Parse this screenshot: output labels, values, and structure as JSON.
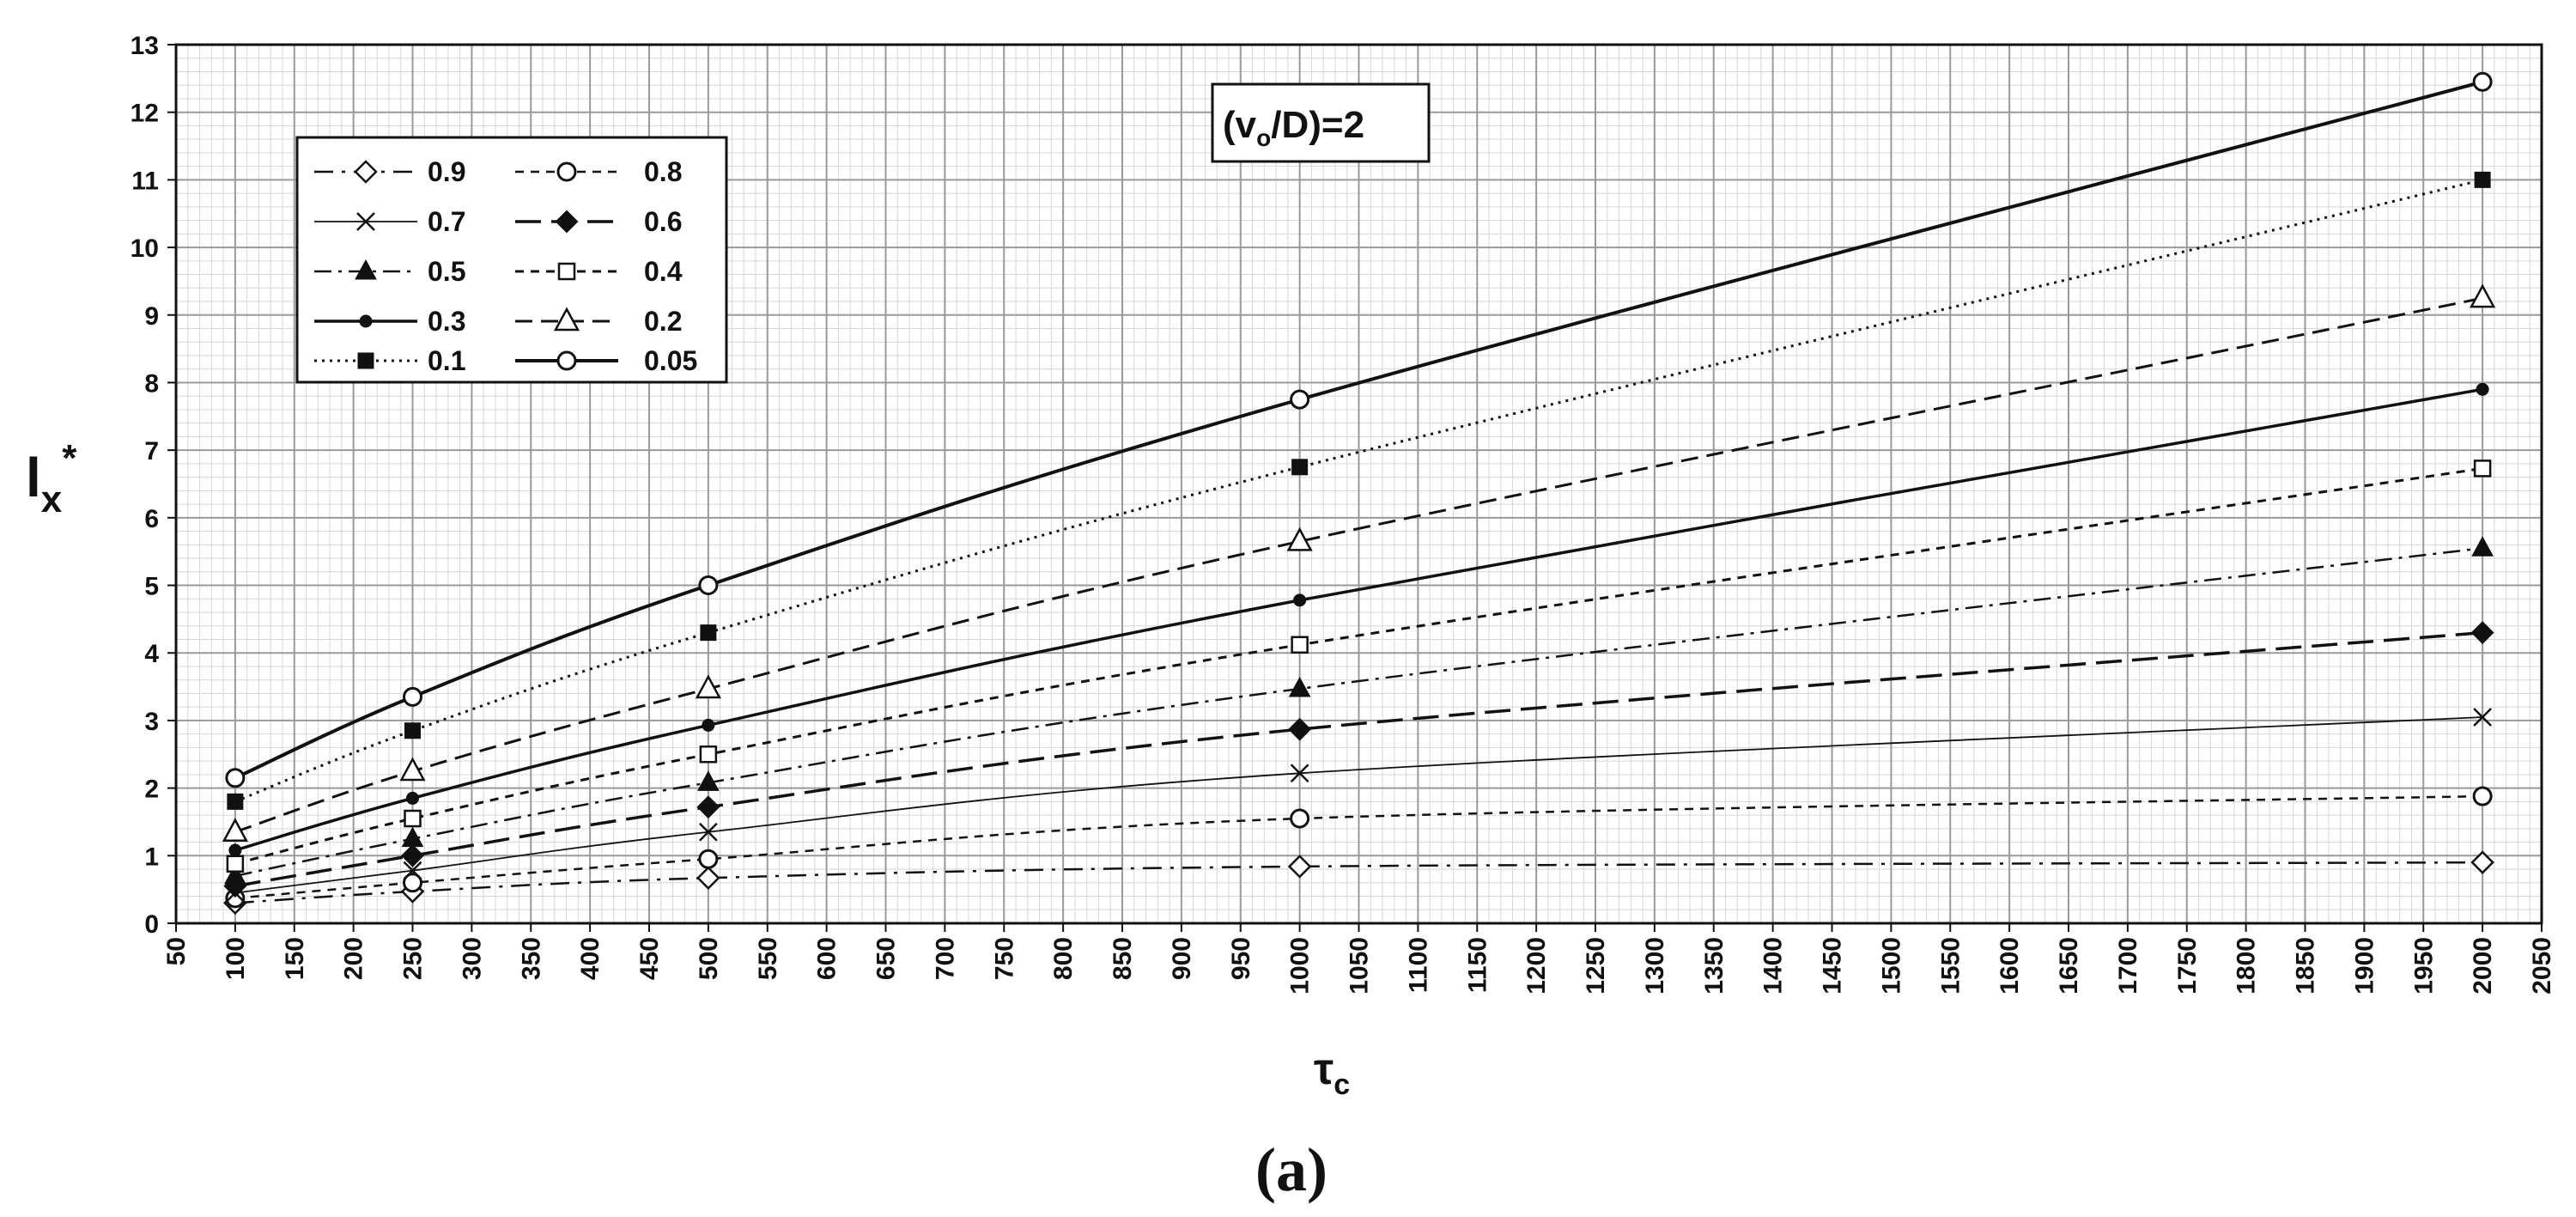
{
  "chart_data": {
    "type": "line",
    "title_box": {
      "main": "(v",
      "sub": "o",
      "rest": "/D)=2"
    },
    "panel_label": "(a)",
    "ylabel": {
      "main": "l",
      "sub": "x",
      "sup": "*"
    },
    "xlabel": {
      "main": "τ",
      "sub": "c"
    },
    "xlim": [
      50,
      2050
    ],
    "ylim": [
      0,
      13
    ],
    "x_ticks": [
      "50",
      "100",
      "150",
      "200",
      "250",
      "300",
      "350",
      "400",
      "450",
      "500",
      "550",
      "600",
      "650",
      "700",
      "750",
      "800",
      "850",
      "900",
      "950",
      "1000",
      "1050",
      "1100",
      "1150",
      "1200",
      "1250",
      "1300",
      "1350",
      "1400",
      "1450",
      "1500",
      "1550",
      "1600",
      "1650",
      "1700",
      "1750",
      "1800",
      "1850",
      "1900",
      "1950",
      "2000",
      "2050"
    ],
    "y_ticks": [
      "0",
      "1",
      "2",
      "3",
      "4",
      "5",
      "6",
      "7",
      "8",
      "9",
      "10",
      "11",
      "12",
      "13"
    ],
    "x": [
      100,
      250,
      500,
      1000,
      2000
    ],
    "series": [
      {
        "name": "0.9",
        "values": [
          0.3,
          0.47,
          0.67,
          0.84,
          0.9
        ],
        "marker": "diamond-open",
        "dash": "22,10,4,10",
        "width": 2.5
      },
      {
        "name": "0.8",
        "values": [
          0.37,
          0.6,
          0.95,
          1.55,
          1.88
        ],
        "marker": "circle-open",
        "dash": "10,8",
        "width": 2.5
      },
      {
        "name": "0.7",
        "values": [
          0.45,
          0.78,
          1.35,
          2.22,
          3.05
        ],
        "marker": "x",
        "dash": "",
        "width": 1.8
      },
      {
        "name": "0.6",
        "values": [
          0.55,
          1.0,
          1.72,
          2.87,
          4.3
        ],
        "marker": "diamond-filled",
        "dash": "30,12",
        "width": 3.5
      },
      {
        "name": "0.5",
        "values": [
          0.7,
          1.25,
          2.08,
          3.47,
          5.55
        ],
        "marker": "triangle-filled",
        "dash": "20,8,4,8",
        "width": 2.5
      },
      {
        "name": "0.4",
        "values": [
          0.88,
          1.55,
          2.5,
          4.12,
          6.73
        ],
        "marker": "square-open",
        "dash": "10,8",
        "width": 3
      },
      {
        "name": "0.3",
        "values": [
          1.08,
          1.85,
          2.93,
          4.78,
          7.9
        ],
        "marker": "circle-filled",
        "dash": "",
        "width": 3.5
      },
      {
        "name": "0.2",
        "values": [
          1.35,
          2.25,
          3.47,
          5.65,
          9.25
        ],
        "marker": "triangle-open",
        "dash": "20,10",
        "width": 3
      },
      {
        "name": "0.1",
        "values": [
          1.8,
          2.85,
          4.3,
          6.75,
          11.0
        ],
        "marker": "square-filled",
        "dash": "3,6",
        "width": 3
      },
      {
        "name": "0.05",
        "values": [
          2.15,
          3.35,
          5.0,
          7.75,
          12.45
        ],
        "marker": "circle-open",
        "dash": "",
        "width": 4
      }
    ],
    "legend_order": [
      "0.9",
      "0.8",
      "0.7",
      "0.6",
      "0.5",
      "0.4",
      "0.3",
      "0.2",
      "0.1",
      "0.05"
    ],
    "grid": true,
    "legend_position": "top-left"
  }
}
